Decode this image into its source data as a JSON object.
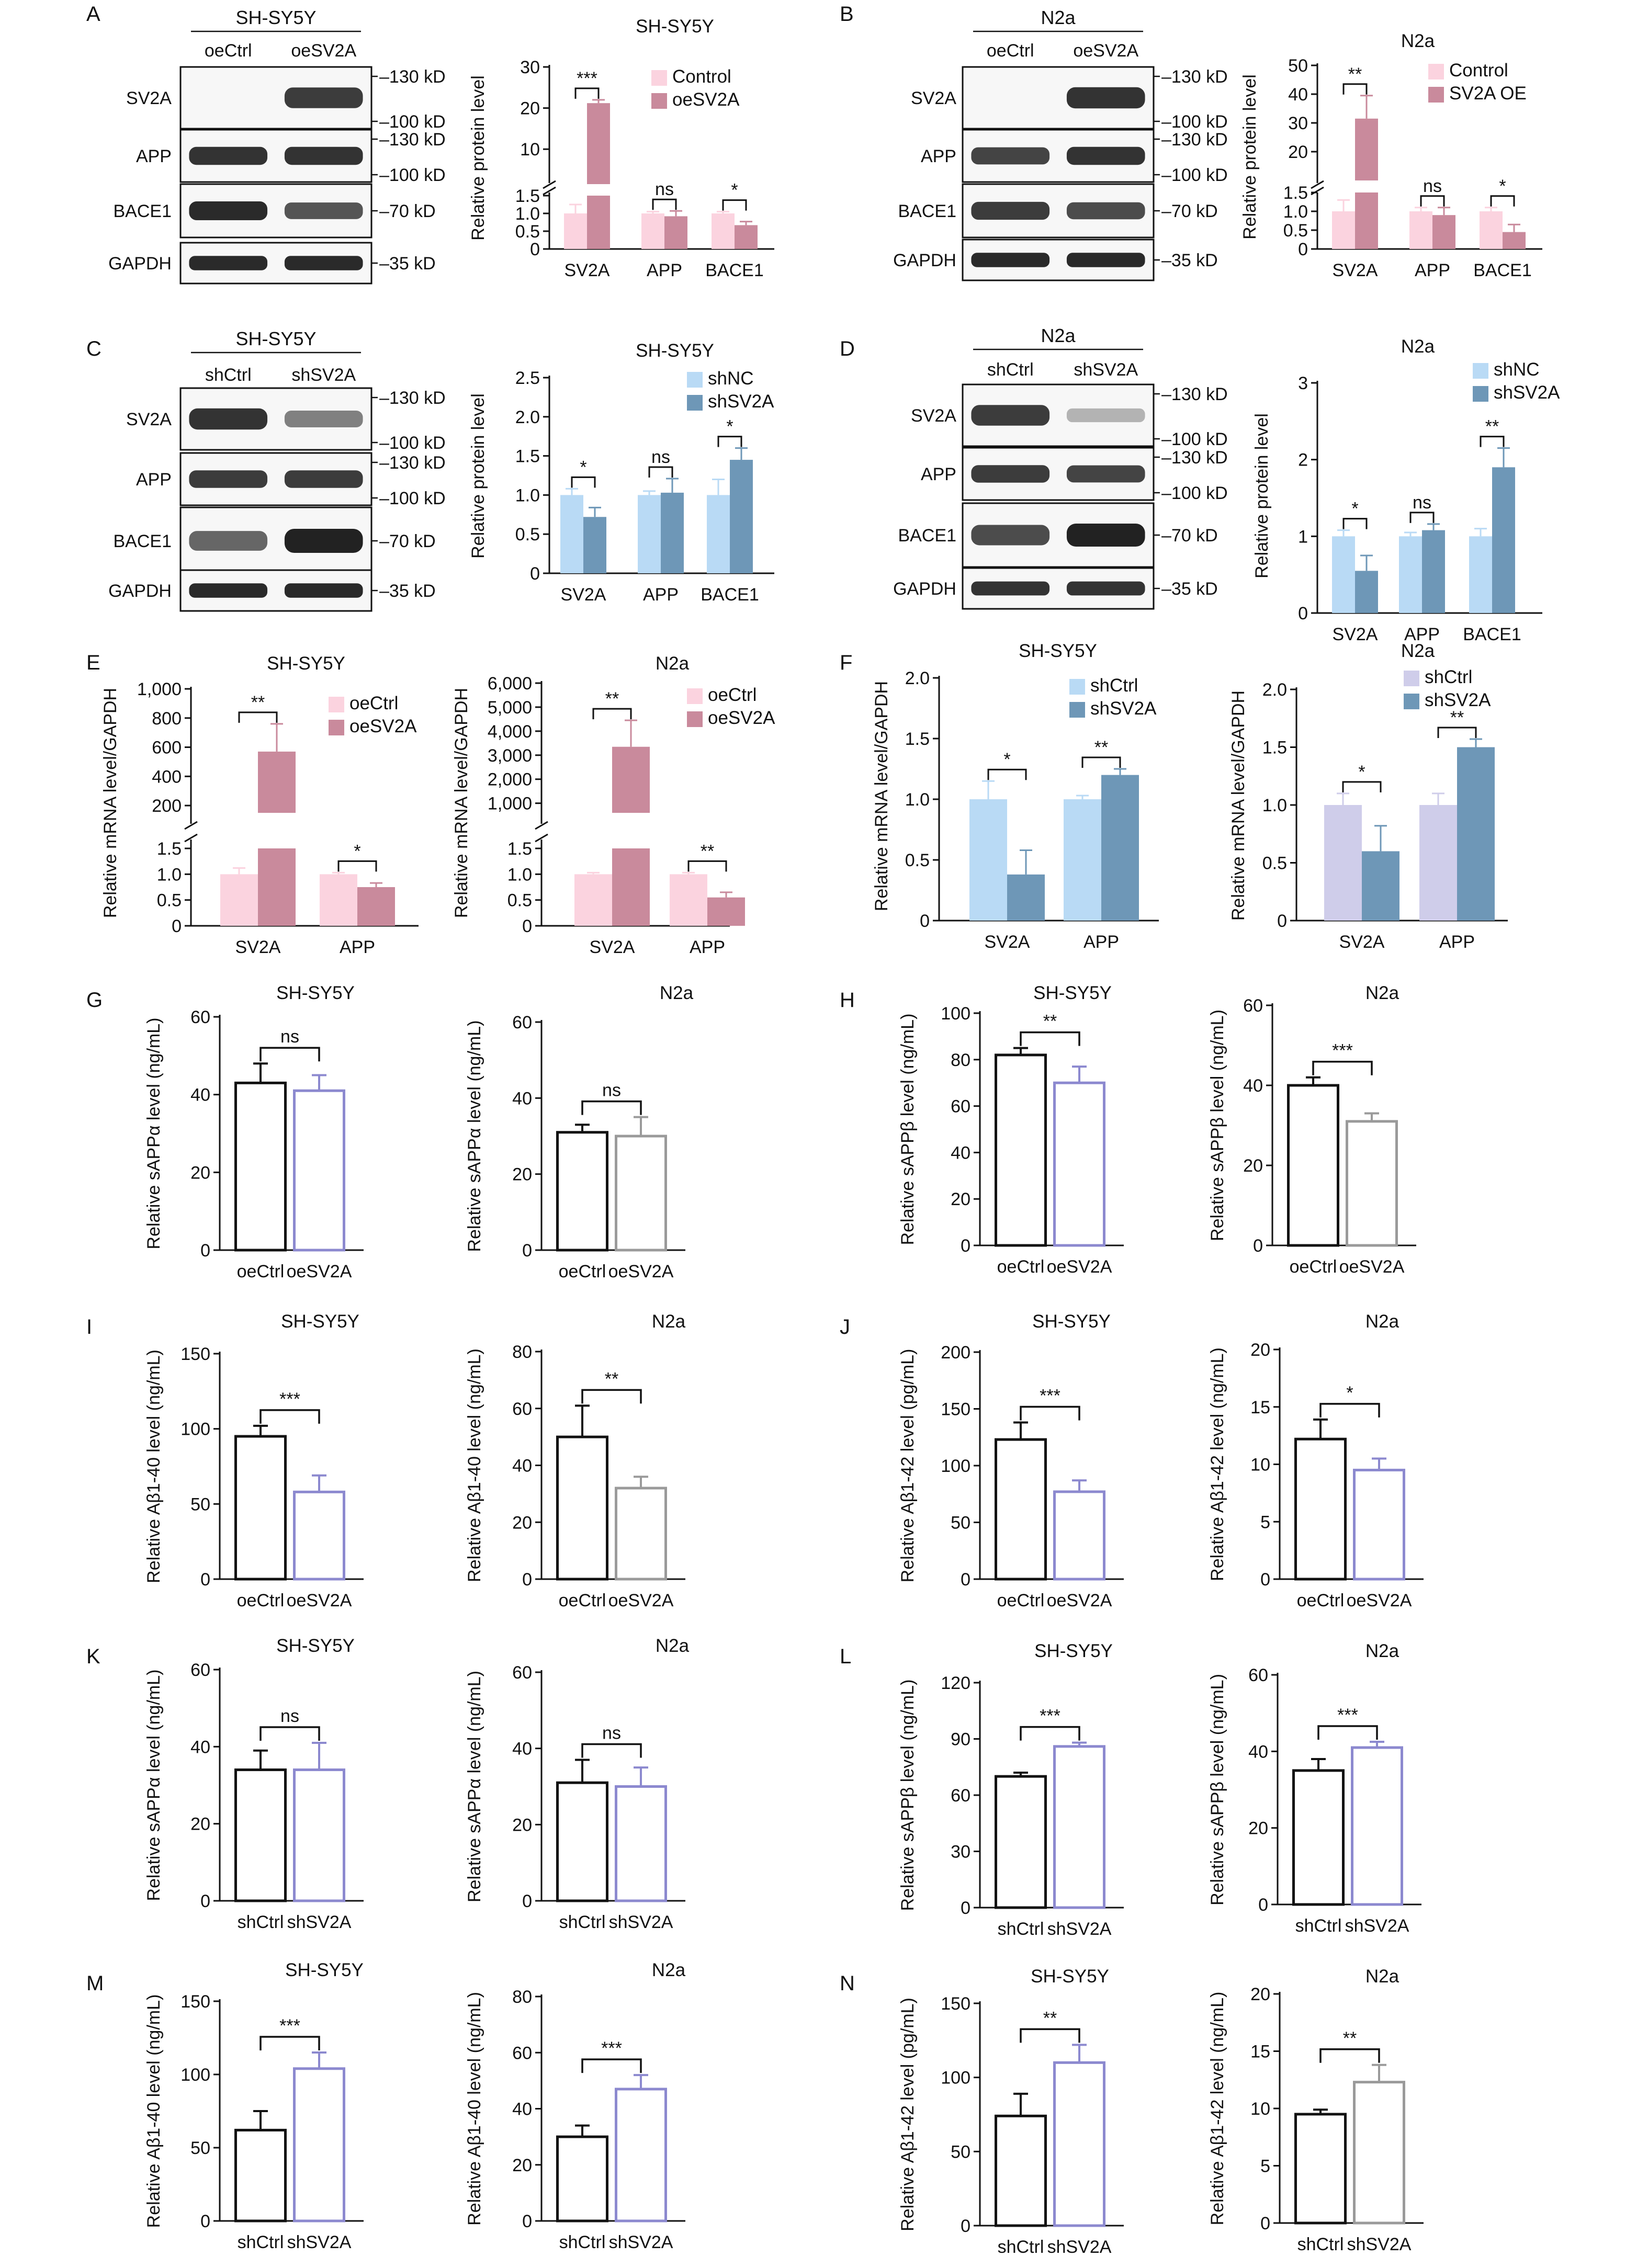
{
  "figure": {
    "panels": [
      {
        "letter": "A",
        "blot": {
          "title": "SH-SY5Y",
          "lanes": [
            "oeCtrl",
            "oeSV2A"
          ],
          "rows": [
            {
              "label": "SV2A",
              "markers": [
                "130 kD",
                "100 kD"
              ],
              "bands": [
                0.0,
                0.85
              ]
            },
            {
              "label": "APP",
              "markers": [
                "130 kD",
                "100 kD"
              ],
              "bands": [
                0.9,
                0.9
              ]
            },
            {
              "label": "BACE1",
              "markers": [
                "70 kD"
              ],
              "bands": [
                0.95,
                0.7
              ]
            },
            {
              "label": "GAPDH",
              "markers": [
                "35 kD"
              ],
              "bands": [
                0.95,
                0.95
              ]
            }
          ]
        }
      },
      {
        "letter": "B",
        "blot": {
          "title": "N2a",
          "lanes": [
            "oeCtrl",
            "oeSV2A"
          ],
          "rows": [
            {
              "label": "SV2A",
              "markers": [
                "130 kD",
                "100 kD"
              ],
              "bands": [
                0.0,
                0.9
              ]
            },
            {
              "label": "APP",
              "markers": [
                "130 kD",
                "100 kD"
              ],
              "bands": [
                0.8,
                0.9
              ]
            },
            {
              "label": "BACE1",
              "markers": [
                "70 kD"
              ],
              "bands": [
                0.85,
                0.75
              ]
            },
            {
              "label": "GAPDH",
              "markers": [
                "35 kD"
              ],
              "bands": [
                0.95,
                0.95
              ]
            }
          ]
        }
      },
      {
        "letter": "C",
        "blot": {
          "title": "SH-SY5Y",
          "lanes": [
            "shCtrl",
            "shSV2A"
          ],
          "rows": [
            {
              "label": "SV2A",
              "markers": [
                "130 kD",
                "100 kD"
              ],
              "bands": [
                0.9,
                0.45
              ]
            },
            {
              "label": "APP",
              "markers": [
                "130 kD",
                "100 kD"
              ],
              "bands": [
                0.85,
                0.85
              ]
            },
            {
              "label": "BACE1",
              "markers": [
                "70 kD"
              ],
              "bands": [
                0.6,
                1.0
              ]
            },
            {
              "label": "GAPDH",
              "markers": [
                "35 kD"
              ],
              "bands": [
                0.95,
                0.95
              ]
            }
          ]
        }
      },
      {
        "letter": "D",
        "blot": {
          "title": "N2a",
          "lanes": [
            "shCtrl",
            "shSV2A"
          ],
          "rows": [
            {
              "label": "SV2A",
              "markers": [
                "130 kD",
                "100 kD"
              ],
              "bands": [
                0.85,
                0.15
              ]
            },
            {
              "label": "APP",
              "markers": [
                "130 kD",
                "100 kD"
              ],
              "bands": [
                0.85,
                0.8
              ]
            },
            {
              "label": "BACE1",
              "markers": [
                "70 kD"
              ],
              "bands": [
                0.75,
                1.0
              ]
            },
            {
              "label": "GAPDH",
              "markers": [
                "35 kD"
              ],
              "bands": [
                0.9,
                0.9
              ]
            }
          ]
        }
      },
      {
        "letter": "E"
      },
      {
        "letter": "F"
      },
      {
        "letter": "G"
      },
      {
        "letter": "H"
      },
      {
        "letter": "I"
      },
      {
        "letter": "J"
      },
      {
        "letter": "K"
      },
      {
        "letter": "L"
      },
      {
        "letter": "M"
      },
      {
        "letter": "N"
      }
    ]
  },
  "colors": {
    "pink_light": "#fbd3df",
    "pink_dark": "#c98a9c",
    "blue_light": "#b9daf5",
    "blue_dark": "#6e97b7",
    "lavender": "#cfcdea",
    "purple_edge": "#8c89cf",
    "gray_edge": "#9a9a9a"
  },
  "chart_data": [
    {
      "id": "A-quant",
      "type": "bar",
      "title": "SH-SY5Y",
      "ylabel": "Relative protein level",
      "categories": [
        "SV2A",
        "APP",
        "BACE1"
      ],
      "series": [
        {
          "name": "Control",
          "values": [
            1.0,
            1.0,
            1.0
          ],
          "errors": [
            0.25,
            0.05,
            0.05
          ]
        },
        {
          "name": "oeSV2A",
          "values": [
            21.2,
            0.92,
            0.67
          ],
          "errors": [
            0.8,
            0.15,
            0.1
          ]
        }
      ],
      "y_broken": true,
      "yticks_low": [
        "0",
        "0.5",
        "1.0",
        "1.5"
      ],
      "yticks_high": [
        "10",
        "20",
        "30"
      ],
      "significance": [
        "***",
        "ns",
        "*"
      ]
    },
    {
      "id": "B-quant",
      "type": "bar",
      "title": "N2a",
      "ylabel": "Relative protein level",
      "categories": [
        "SV2A",
        "APP",
        "BACE1"
      ],
      "series": [
        {
          "name": "Control",
          "values": [
            1.0,
            1.0,
            1.0
          ],
          "errors": [
            0.3,
            0.1,
            0.1
          ]
        },
        {
          "name": "SV2A OE",
          "values": [
            31.5,
            0.9,
            0.45
          ],
          "errors": [
            8.0,
            0.2,
            0.2
          ]
        }
      ],
      "y_broken": true,
      "yticks_low": [
        "0",
        "0.5",
        "1.0",
        "1.5"
      ],
      "yticks_high": [
        "20",
        "30",
        "40",
        "50"
      ],
      "significance": [
        "**",
        "ns",
        "*"
      ]
    },
    {
      "id": "C-quant",
      "type": "bar",
      "title": "SH-SY5Y",
      "ylabel": "Relative protein level",
      "categories": [
        "SV2A",
        "APP",
        "BACE1"
      ],
      "series": [
        {
          "name": "shNC",
          "values": [
            1.0,
            1.0,
            1.0
          ],
          "errors": [
            0.08,
            0.05,
            0.2
          ]
        },
        {
          "name": "shSV2A",
          "values": [
            0.72,
            1.03,
            1.45
          ],
          "errors": [
            0.12,
            0.18,
            0.15
          ]
        }
      ],
      "yticks": [
        "0",
        "0.5",
        "1.0",
        "1.5",
        "2.0",
        "2.5"
      ],
      "ylim": [
        0,
        2.5
      ],
      "significance": [
        "*",
        "ns",
        "*"
      ]
    },
    {
      "id": "D-quant",
      "type": "bar",
      "title": "N2a",
      "ylabel": "Relative protein level",
      "categories": [
        "SV2A",
        "APP",
        "BACE1"
      ],
      "series": [
        {
          "name": "shNC",
          "values": [
            1.0,
            1.0,
            1.0
          ],
          "errors": [
            0.08,
            0.05,
            0.1
          ]
        },
        {
          "name": "shSV2A",
          "values": [
            0.55,
            1.08,
            1.9
          ],
          "errors": [
            0.2,
            0.08,
            0.25
          ]
        }
      ],
      "yticks": [
        "0",
        "1",
        "2",
        "3"
      ],
      "ylim": [
        0,
        3
      ],
      "significance": [
        "*",
        "ns",
        "**"
      ]
    },
    {
      "id": "E-left",
      "type": "bar",
      "title": "SH-SY5Y",
      "ylabel": "Relative mRNA level/GAPDH",
      "categories": [
        "SV2A",
        "APP"
      ],
      "series": [
        {
          "name": "oeCtrl",
          "values": [
            1.0,
            1.0
          ],
          "errors": [
            0.12,
            0.03
          ]
        },
        {
          "name": "oeSV2A",
          "values": [
            570,
            0.75
          ],
          "errors": [
            190,
            0.08
          ]
        }
      ],
      "y_broken": true,
      "yticks_low": [
        "0",
        "0.5",
        "1.0",
        "1.5"
      ],
      "yticks_high": [
        "200",
        "400",
        "600",
        "800",
        "1,000"
      ],
      "significance": [
        "**",
        "*"
      ]
    },
    {
      "id": "E-right",
      "type": "bar",
      "title": "N2a",
      "ylabel": "Relative mRNA level/GAPDH",
      "categories": [
        "SV2A",
        "APP"
      ],
      "series": [
        {
          "name": "oeCtrl",
          "values": [
            1.0,
            1.0
          ],
          "errors": [
            0.03,
            0.03
          ]
        },
        {
          "name": "oeSV2A",
          "values": [
            3350,
            0.55
          ],
          "errors": [
            1100,
            0.1
          ]
        }
      ],
      "y_broken": true,
      "yticks_low": [
        "0",
        "0.5",
        "1.0",
        "1.5"
      ],
      "yticks_high": [
        "1,000",
        "2,000",
        "3,000",
        "4,000",
        "5,000",
        "6,000"
      ],
      "significance": [
        "**",
        "**"
      ]
    },
    {
      "id": "F-left",
      "type": "bar",
      "title": "SH-SY5Y",
      "ylabel": "Relative mRNA level/GAPDH",
      "categories": [
        "SV2A",
        "APP"
      ],
      "series": [
        {
          "name": "shCtrl",
          "values": [
            1.0,
            1.0
          ],
          "errors": [
            0.15,
            0.03
          ]
        },
        {
          "name": "shSV2A",
          "values": [
            0.38,
            1.2
          ],
          "errors": [
            0.2,
            0.05
          ]
        }
      ],
      "yticks": [
        "0",
        "0.5",
        "1.0",
        "1.5",
        "2.0"
      ],
      "ylim": [
        0,
        2.0
      ],
      "significance": [
        "*",
        "**"
      ]
    },
    {
      "id": "F-right",
      "type": "bar",
      "title": "N2a",
      "ylabel": "Relative mRNA level/GAPDH",
      "categories": [
        "SV2A",
        "APP"
      ],
      "series": [
        {
          "name": "shCtrl",
          "values": [
            1.0,
            1.0
          ],
          "errors": [
            0.1,
            0.1
          ]
        },
        {
          "name": "shSV2A",
          "values": [
            0.6,
            1.5
          ],
          "errors": [
            0.22,
            0.07
          ]
        }
      ],
      "yticks": [
        "0",
        "0.5",
        "1.0",
        "1.5",
        "2.0"
      ],
      "ylim": [
        0,
        2.0
      ],
      "significance": [
        "*",
        "**"
      ]
    },
    {
      "id": "G-left",
      "type": "bar",
      "title": "SH-SY5Y",
      "ylabel": "Relative sAPPα level (ng/mL)",
      "categories": [
        "oeCtrl",
        "oeSV2A"
      ],
      "values": [
        43,
        41
      ],
      "errors": [
        5,
        4
      ],
      "yticks": [
        "0",
        "20",
        "40",
        "60"
      ],
      "ylim": [
        0,
        60
      ],
      "significance": "ns"
    },
    {
      "id": "G-right",
      "type": "bar",
      "title": "N2a",
      "ylabel": "Relative sAPPα level (ng/mL)",
      "categories": [
        "oeCtrl",
        "oeSV2A"
      ],
      "values": [
        31,
        30
      ],
      "errors": [
        2,
        5
      ],
      "yticks": [
        "0",
        "20",
        "40",
        "60"
      ],
      "ylim": [
        0,
        60
      ],
      "significance": "ns"
    },
    {
      "id": "H-left",
      "type": "bar",
      "title": "SH-SY5Y",
      "ylabel": "Relative sAPPβ level (ng/mL)",
      "categories": [
        "oeCtrl",
        "oeSV2A"
      ],
      "values": [
        82,
        70
      ],
      "errors": [
        3,
        7
      ],
      "yticks": [
        "0",
        "20",
        "40",
        "60",
        "80",
        "100"
      ],
      "ylim": [
        0,
        100
      ],
      "significance": "**"
    },
    {
      "id": "H-right",
      "type": "bar",
      "title": "N2a",
      "ylabel": "Relative sAPPβ level (ng/mL)",
      "categories": [
        "oeCtrl",
        "oeSV2A"
      ],
      "values": [
        40,
        31
      ],
      "errors": [
        2,
        2
      ],
      "yticks": [
        "0",
        "20",
        "40",
        "60"
      ],
      "ylim": [
        0,
        60
      ],
      "significance": "***"
    },
    {
      "id": "I-left",
      "type": "bar",
      "title": "SH-SY5Y",
      "ylabel": "Relative Aβ1-40 level (ng/mL)",
      "categories": [
        "oeCtrl",
        "oeSV2A"
      ],
      "values": [
        95,
        58
      ],
      "errors": [
        7,
        11
      ],
      "yticks": [
        "0",
        "50",
        "100",
        "150"
      ],
      "ylim": [
        0,
        150
      ],
      "significance": "***"
    },
    {
      "id": "I-right",
      "type": "bar",
      "title": "N2a",
      "ylabel": "Relative Aβ1-40 level (ng/mL)",
      "categories": [
        "oeCtrl",
        "oeSV2A"
      ],
      "values": [
        50,
        32
      ],
      "errors": [
        11,
        4
      ],
      "yticks": [
        "0",
        "20",
        "40",
        "60",
        "80"
      ],
      "ylim": [
        0,
        80
      ],
      "significance": "**"
    },
    {
      "id": "J-left",
      "type": "bar",
      "title": "SH-SY5Y",
      "ylabel": "Relative Aβ1-42 level (pg/mL)",
      "categories": [
        "oeCtrl",
        "oeSV2A"
      ],
      "values": [
        123,
        77
      ],
      "errors": [
        15,
        10
      ],
      "yticks": [
        "0",
        "50",
        "100",
        "150",
        "200"
      ],
      "ylim": [
        0,
        200
      ],
      "significance": "***"
    },
    {
      "id": "J-right",
      "type": "bar",
      "title": "N2a",
      "ylabel": "Relative Aβ1-42 level (ng/mL)",
      "categories": [
        "oeCtrl",
        "oeSV2A"
      ],
      "values": [
        12.2,
        9.5
      ],
      "errors": [
        1.7,
        1.0
      ],
      "yticks": [
        "0",
        "5",
        "10",
        "15",
        "20"
      ],
      "ylim": [
        0,
        20
      ],
      "significance": "*"
    },
    {
      "id": "K-left",
      "type": "bar",
      "title": "SH-SY5Y",
      "ylabel": "Relative sAPPα level (ng/mL)",
      "categories": [
        "shCtrl",
        "shSV2A"
      ],
      "values": [
        34,
        34
      ],
      "errors": [
        5,
        7
      ],
      "yticks": [
        "0",
        "20",
        "40",
        "60"
      ],
      "ylim": [
        0,
        60
      ],
      "significance": "ns"
    },
    {
      "id": "K-right",
      "type": "bar",
      "title": "N2a",
      "ylabel": "Relative sAPPα level (ng/mL)",
      "categories": [
        "shCtrl",
        "shSV2A"
      ],
      "values": [
        31,
        30
      ],
      "errors": [
        6,
        5
      ],
      "yticks": [
        "0",
        "20",
        "40",
        "60"
      ],
      "ylim": [
        0,
        60
      ],
      "significance": "ns"
    },
    {
      "id": "L-left",
      "type": "bar",
      "title": "SH-SY5Y",
      "ylabel": "Relative sAPPβ level (ng/mL)",
      "categories": [
        "shCtrl",
        "shSV2A"
      ],
      "values": [
        70,
        86
      ],
      "errors": [
        2,
        2
      ],
      "yticks": [
        "0",
        "30",
        "60",
        "90",
        "120"
      ],
      "ylim": [
        0,
        120
      ],
      "significance": "***"
    },
    {
      "id": "L-right",
      "type": "bar",
      "title": "N2a",
      "ylabel": "Relative sAPPβ level (ng/mL)",
      "categories": [
        "shCtrl",
        "shSV2A"
      ],
      "values": [
        35,
        41
      ],
      "errors": [
        3,
        1.5
      ],
      "yticks": [
        "0",
        "20",
        "40",
        "60"
      ],
      "ylim": [
        0,
        60
      ],
      "significance": "***"
    },
    {
      "id": "M-left",
      "type": "bar",
      "title": "SH-SY5Y",
      "ylabel": "Relative Aβ1-40 level (ng/mL)",
      "categories": [
        "shCtrl",
        "shSV2A"
      ],
      "values": [
        62,
        104
      ],
      "errors": [
        13,
        11
      ],
      "yticks": [
        "0",
        "50",
        "100",
        "150"
      ],
      "ylim": [
        0,
        150
      ],
      "significance": "***"
    },
    {
      "id": "M-right",
      "type": "bar",
      "title": "N2a",
      "ylabel": "Relative Aβ1-40 level (ng/mL)",
      "categories": [
        "shCtrl",
        "shSV2A"
      ],
      "values": [
        30,
        47
      ],
      "errors": [
        4,
        5
      ],
      "yticks": [
        "0",
        "20",
        "40",
        "60",
        "80"
      ],
      "ylim": [
        0,
        80
      ],
      "significance": "***"
    },
    {
      "id": "N-left",
      "type": "bar",
      "title": "SH-SY5Y",
      "ylabel": "Relative Aβ1-42 level (pg/mL)",
      "categories": [
        "shCtrl",
        "shSV2A"
      ],
      "values": [
        74,
        110
      ],
      "errors": [
        15,
        12
      ],
      "yticks": [
        "0",
        "50",
        "100",
        "150"
      ],
      "ylim": [
        0,
        150
      ],
      "significance": "**"
    },
    {
      "id": "N-right",
      "type": "bar",
      "title": "N2a",
      "ylabel": "Relative Aβ1-42 level (ng/mL)",
      "categories": [
        "shCtrl",
        "shSV2A"
      ],
      "values": [
        9.5,
        12.3
      ],
      "errors": [
        0.4,
        1.5
      ],
      "yticks": [
        "0",
        "5",
        "10",
        "15",
        "20"
      ],
      "ylim": [
        0,
        20
      ],
      "significance": "**"
    }
  ]
}
